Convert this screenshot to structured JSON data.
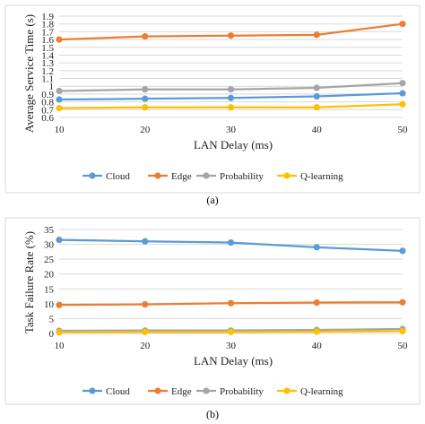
{
  "chart_data": [
    {
      "type": "line",
      "caption": "(a)",
      "xlabel": "LAN Delay (ms)",
      "ylabel": "Average Service Time (s)",
      "x": [
        10,
        20,
        30,
        40,
        50
      ],
      "xticks": [
        "10",
        "20",
        "30",
        "40",
        "50"
      ],
      "ylim": [
        0.6,
        1.9
      ],
      "yticks": [
        "0.6",
        "0.7",
        "0.8",
        "0.9",
        "1",
        "1.1",
        "1.2",
        "1.3",
        "1.4",
        "1.5",
        "1.6",
        "1.7",
        "1.8",
        "1.9"
      ],
      "grid": true,
      "legend_position": "bottom",
      "series": [
        {
          "name": "Cloud",
          "color": "#5B9BD5",
          "values": [
            0.83,
            0.84,
            0.85,
            0.87,
            0.91
          ]
        },
        {
          "name": "Edge",
          "color": "#ED7D31",
          "values": [
            1.6,
            1.64,
            1.65,
            1.66,
            1.8
          ]
        },
        {
          "name": "Probability",
          "color": "#A5A5A5",
          "values": [
            0.94,
            0.96,
            0.96,
            0.98,
            1.04
          ]
        },
        {
          "name": "Q-learning",
          "color": "#FFC000",
          "values": [
            0.72,
            0.73,
            0.73,
            0.73,
            0.77
          ]
        }
      ]
    },
    {
      "type": "line",
      "caption": "(b)",
      "xlabel": "LAN Delay (ms)",
      "ylabel": "Task Failure Rate (%)",
      "x": [
        10,
        20,
        30,
        40,
        50
      ],
      "xticks": [
        "10",
        "20",
        "30",
        "40",
        "50"
      ],
      "ylim": [
        0,
        35
      ],
      "yticks": [
        "0",
        "5",
        "10",
        "15",
        "20",
        "25",
        "30",
        "35"
      ],
      "grid": true,
      "legend_position": "bottom",
      "series": [
        {
          "name": "Cloud",
          "color": "#5B9BD5",
          "values": [
            31.5,
            31.0,
            30.6,
            29.0,
            27.8
          ]
        },
        {
          "name": "Edge",
          "color": "#ED7D31",
          "values": [
            9.6,
            9.8,
            10.2,
            10.4,
            10.5
          ]
        },
        {
          "name": "Probability",
          "color": "#A5A5A5",
          "values": [
            0.9,
            1.0,
            1.0,
            1.2,
            1.5
          ]
        },
        {
          "name": "Q-learning",
          "color": "#FFC000",
          "values": [
            0.4,
            0.5,
            0.5,
            0.6,
            0.8
          ]
        }
      ]
    }
  ]
}
